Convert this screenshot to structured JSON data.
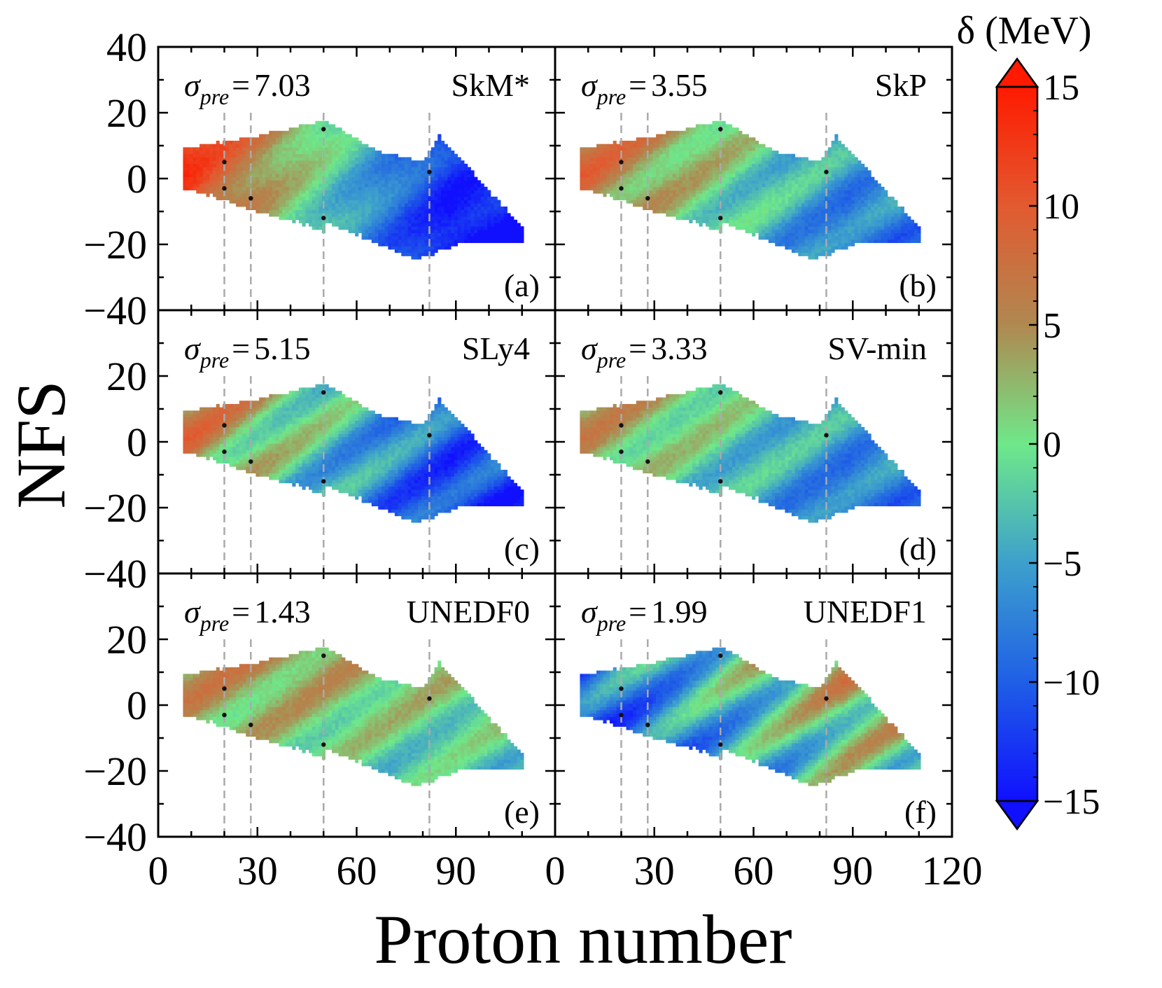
{
  "chart_data": {
    "type": "heatmap",
    "xlabel": "Proton number",
    "ylabel": "NFS",
    "xlim": [
      0,
      120
    ],
    "ylim": [
      -40,
      40
    ],
    "xticks": [
      0,
      30,
      60,
      90,
      120
    ],
    "yticks": [
      -40,
      -20,
      0,
      20,
      40
    ],
    "colorbar": {
      "title": "δ (MeV)",
      "min": -15,
      "max": 15,
      "ticks": [
        -15,
        -10,
        -5,
        0,
        5,
        10,
        15
      ],
      "colormap": [
        "#1010ff",
        "#1f5fe6",
        "#3da0cc",
        "#6fe88a",
        "#b08850",
        "#e25a30",
        "#ff1a00"
      ]
    },
    "magic_numbers": [
      20,
      28,
      50,
      82
    ],
    "reference_points": [
      {
        "z": 20,
        "nfs": 5
      },
      {
        "z": 20,
        "nfs": -3
      },
      {
        "z": 28,
        "nfs": -6
      },
      {
        "z": 50,
        "nfs": 15
      },
      {
        "z": 50,
        "nfs": -12
      },
      {
        "z": 82,
        "nfs": 2
      }
    ],
    "sigma_symbol": "σ",
    "sigma_subscript": "pre",
    "panels": [
      {
        "letter": "(a)",
        "model": "SkM*",
        "sigma_pre": "7.03",
        "light_bias": 12,
        "heavy_bias": -13,
        "stripe": 2
      },
      {
        "letter": "(b)",
        "model": "SkP",
        "sigma_pre": "3.55",
        "light_bias": 7,
        "heavy_bias": -6,
        "stripe": 3
      },
      {
        "letter": "(c)",
        "model": "SLy4",
        "sigma_pre": "5.15",
        "light_bias": 6,
        "heavy_bias": -10,
        "stripe": 4
      },
      {
        "letter": "(d)",
        "model": "SV-min",
        "sigma_pre": "3.33",
        "light_bias": 4,
        "heavy_bias": -6,
        "stripe": 3
      },
      {
        "letter": "(e)",
        "model": "UNEDF0",
        "sigma_pre": "1.43",
        "light_bias": 4,
        "heavy_bias": 0,
        "stripe": 3
      },
      {
        "letter": "(f)",
        "model": "UNEDF1",
        "sigma_pre": "1.99",
        "light_bias": -10,
        "heavy_bias": 2,
        "stripe": 5
      }
    ]
  }
}
